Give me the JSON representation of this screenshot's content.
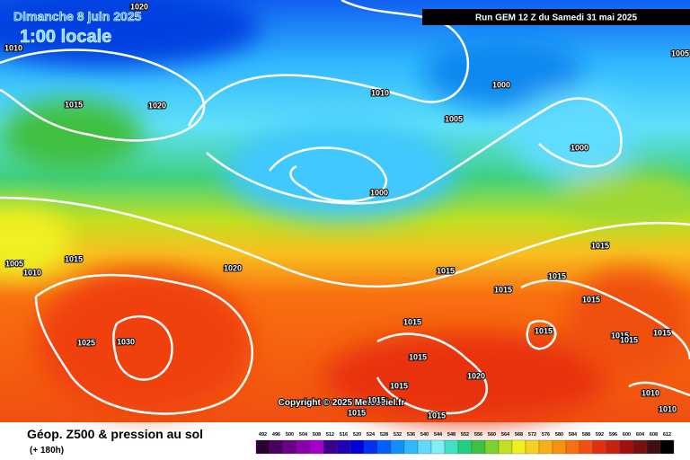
{
  "header": {
    "date": "Dimanche 8 juin 2025",
    "time": "1:00 locale",
    "run": "Run GEM 12 Z du Samedi 31 mai 2025"
  },
  "copyright": "Copyright © 2025 Meteociel.fr",
  "footer": {
    "title": "Géop. Z500 & pression au sol",
    "lead": "(+ 180h)"
  },
  "scale": {
    "values": [
      492,
      496,
      500,
      504,
      508,
      512,
      516,
      520,
      524,
      528,
      532,
      536,
      540,
      544,
      548,
      552,
      556,
      560,
      564,
      568,
      572,
      576,
      580,
      584,
      588,
      592,
      596,
      600,
      604,
      608,
      612
    ],
    "colors": [
      "#2b0033",
      "#4a005e",
      "#6a0085",
      "#8a00aa",
      "#a400c8",
      "#3a0090",
      "#2200b8",
      "#0000d8",
      "#0030f0",
      "#0060ff",
      "#1090ff",
      "#30b8ff",
      "#60d8ff",
      "#80eef8",
      "#40e0c0",
      "#20d080",
      "#40c040",
      "#80d030",
      "#c0e020",
      "#f0f020",
      "#f8d020",
      "#f8b018",
      "#f89010",
      "#f87010",
      "#f05010",
      "#e03010",
      "#c82010",
      "#a01010",
      "#781010",
      "#401010",
      "#000000"
    ]
  },
  "isobar_labels": [
    1020,
    1010,
    1015,
    1020,
    1010,
    1000,
    1005,
    1000,
    1000,
    1005,
    1010,
    1015,
    1020,
    1015,
    1015,
    1015,
    1015,
    1015,
    1025,
    1030,
    1015,
    1015,
    1015,
    1015,
    1015,
    1015,
    1020,
    1015,
    1010,
    1010,
    1015,
    1015,
    1015,
    1005
  ]
}
